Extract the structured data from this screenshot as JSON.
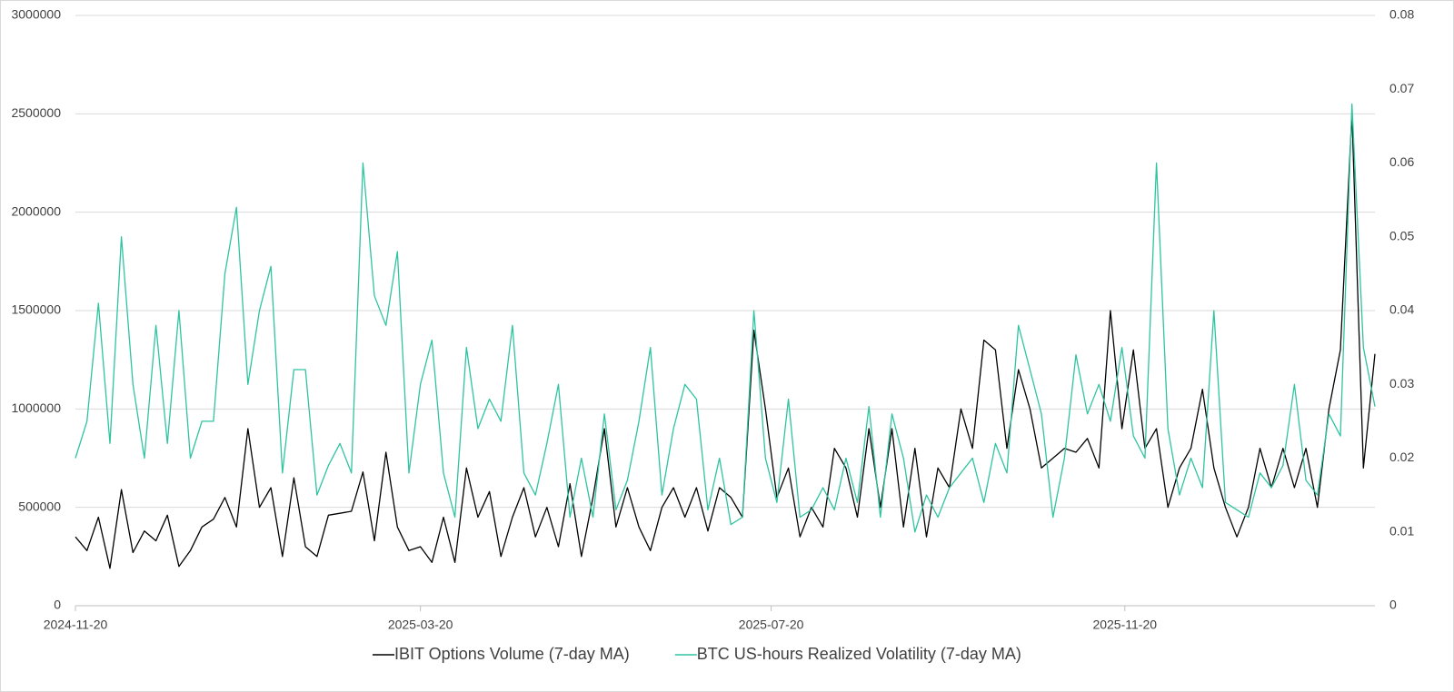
{
  "chart_data": {
    "type": "line",
    "x": [
      "2024-11-20",
      "2024-11-24",
      "2024-11-28",
      "2024-12-02",
      "2024-12-06",
      "2024-12-10",
      "2024-12-14",
      "2024-12-18",
      "2024-12-22",
      "2024-12-26",
      "2024-12-30",
      "2025-01-03",
      "2025-01-07",
      "2025-01-11",
      "2025-01-15",
      "2025-01-19",
      "2025-01-23",
      "2025-01-27",
      "2025-01-31",
      "2025-02-04",
      "2025-02-08",
      "2025-02-12",
      "2025-02-16",
      "2025-02-20",
      "2025-02-24",
      "2025-02-28",
      "2025-03-04",
      "2025-03-08",
      "2025-03-12",
      "2025-03-16",
      "2025-03-20",
      "2025-03-24",
      "2025-03-28",
      "2025-04-01",
      "2025-04-05",
      "2025-04-09",
      "2025-04-13",
      "2025-04-17",
      "2025-04-21",
      "2025-04-25",
      "2025-04-29",
      "2025-05-03",
      "2025-05-07",
      "2025-05-11",
      "2025-05-15",
      "2025-05-19",
      "2025-05-23",
      "2025-05-27",
      "2025-05-31",
      "2025-06-04",
      "2025-06-08",
      "2025-06-12",
      "2025-06-16",
      "2025-06-20",
      "2025-06-24",
      "2025-06-28",
      "2025-07-02",
      "2025-07-06",
      "2025-07-10",
      "2025-07-14",
      "2025-07-18",
      "2025-07-22",
      "2025-07-26",
      "2025-07-30",
      "2025-08-03",
      "2025-08-07",
      "2025-08-11",
      "2025-08-15",
      "2025-08-19",
      "2025-08-23",
      "2025-08-27",
      "2025-08-31",
      "2025-09-04",
      "2025-09-08",
      "2025-09-12",
      "2025-09-16",
      "2025-09-20",
      "2025-09-24",
      "2025-09-28",
      "2025-10-02",
      "2025-10-06",
      "2025-10-10",
      "2025-10-14",
      "2025-10-18",
      "2025-10-22",
      "2025-10-26",
      "2025-10-30",
      "2025-11-03",
      "2025-11-07",
      "2025-11-11",
      "2025-11-15",
      "2025-11-19",
      "2025-11-23",
      "2025-11-27",
      "2025-12-01",
      "2025-12-05",
      "2025-12-09",
      "2025-12-13",
      "2025-12-17",
      "2025-12-21",
      "2025-12-25",
      "2025-12-29",
      "2026-01-02",
      "2026-01-06",
      "2026-01-10",
      "2026-01-14",
      "2026-01-18",
      "2026-01-22",
      "2026-01-26",
      "2026-01-30",
      "2026-02-03",
      "2026-02-07",
      "2026-02-11",
      "2026-02-15"
    ],
    "xlim": [
      "2024-11-20",
      "2026-02-15"
    ],
    "xticks": [
      "2024-11-20",
      "2025-03-20",
      "2025-07-20",
      "2025-11-20"
    ],
    "ylim": [
      0,
      3000000
    ],
    "yticks": [
      0,
      500000,
      1000000,
      1500000,
      2000000,
      2500000,
      3000000
    ],
    "y2lim": [
      0,
      0.08
    ],
    "y2ticks": [
      0,
      0.01,
      0.02,
      0.03,
      0.04,
      0.05,
      0.06,
      0.07,
      0.08
    ],
    "grid": true,
    "legend": "bottom",
    "series": [
      {
        "name": "IBIT Options Volume (7-day MA)",
        "color": "#000000",
        "values": [
          350000,
          280000,
          450000,
          190000,
          590000,
          270000,
          380000,
          330000,
          460000,
          200000,
          280000,
          400000,
          440000,
          550000,
          400000,
          900000,
          500000,
          600000,
          250000,
          650000,
          300000,
          250000,
          460000,
          470000,
          480000,
          680000,
          330000,
          780000,
          400000,
          280000,
          300000,
          220000,
          450000,
          220000,
          700000,
          450000,
          580000,
          250000,
          450000,
          600000,
          350000,
          500000,
          300000,
          620000,
          250000,
          550000,
          900000,
          400000,
          600000,
          400000,
          280000,
          500000,
          600000,
          450000,
          600000,
          380000,
          600000,
          550000,
          450000,
          1400000,
          1000000,
          550000,
          700000,
          350000,
          500000,
          400000,
          800000,
          700000,
          450000,
          900000,
          500000,
          900000,
          400000,
          800000,
          350000,
          700000,
          600000,
          1000000,
          800000,
          1350000,
          1300000,
          800000,
          1200000,
          1000000,
          700000,
          750000,
          800000,
          780000,
          850000,
          700000,
          1500000,
          900000,
          1300000,
          800000,
          900000,
          500000,
          700000,
          800000,
          1100000,
          700000,
          500000,
          350000,
          500000,
          800000,
          600000,
          800000,
          600000,
          800000,
          500000,
          1000000,
          1300000,
          2500000,
          700000,
          1280000
        ]
      },
      {
        "name": "BTC US-hours Realized Volatility (7-day MA)",
        "color": "#2ec4a0",
        "axis": "y2",
        "values": [
          0.02,
          0.025,
          0.041,
          0.022,
          0.05,
          0.03,
          0.02,
          0.038,
          0.022,
          0.04,
          0.02,
          0.025,
          0.025,
          0.045,
          0.054,
          0.03,
          0.04,
          0.046,
          0.018,
          0.032,
          0.032,
          0.015,
          0.019,
          0.022,
          0.018,
          0.06,
          0.042,
          0.038,
          0.048,
          0.018,
          0.03,
          0.036,
          0.018,
          0.012,
          0.035,
          0.024,
          0.028,
          0.025,
          0.038,
          0.018,
          0.015,
          0.022,
          0.03,
          0.012,
          0.02,
          0.012,
          0.026,
          0.013,
          0.017,
          0.025,
          0.035,
          0.015,
          0.024,
          0.03,
          0.028,
          0.013,
          0.02,
          0.011,
          0.012,
          0.04,
          0.02,
          0.014,
          0.028,
          0.012,
          0.013,
          0.016,
          0.013,
          0.02,
          0.014,
          0.027,
          0.012,
          0.026,
          0.02,
          0.01,
          0.015,
          0.012,
          0.016,
          0.018,
          0.02,
          0.014,
          0.022,
          0.018,
          0.038,
          0.032,
          0.026,
          0.012,
          0.02,
          0.034,
          0.026,
          0.03,
          0.025,
          0.035,
          0.023,
          0.02,
          0.06,
          0.024,
          0.015,
          0.02,
          0.016,
          0.04,
          0.014,
          0.013,
          0.012,
          0.018,
          0.016,
          0.019,
          0.03,
          0.017,
          0.015,
          0.026,
          0.023,
          0.068,
          0.035,
          0.027
        ]
      }
    ]
  }
}
